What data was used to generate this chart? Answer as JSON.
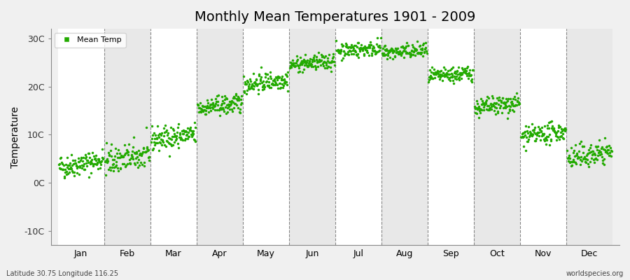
{
  "title": "Monthly Mean Temperatures 1901 - 2009",
  "ylabel": "Temperature",
  "yticks": [
    -10,
    0,
    10,
    20,
    30
  ],
  "ytick_labels": [
    "-10C",
    "0C",
    "10C",
    "20C",
    "30C"
  ],
  "ylim": [
    -13,
    32
  ],
  "marker_color": "#22AA00",
  "marker": "o",
  "marker_size": 2.5,
  "legend_label": "Mean Temp",
  "bg_color": "#F0F0F0",
  "band_color_light": "#FFFFFF",
  "band_color_dark": "#E8E8E8",
  "footnote_left": "Latitude 30.75 Longitude 116.25",
  "footnote_right": "worldspecies.org",
  "month_names": [
    "Jan",
    "Feb",
    "Mar",
    "Apr",
    "May",
    "Jun",
    "Jul",
    "Aug",
    "Sep",
    "Oct",
    "Nov",
    "Dec"
  ],
  "monthly_mean_temps": [
    3.2,
    4.5,
    9.0,
    15.5,
    20.5,
    24.5,
    27.5,
    27.0,
    22.0,
    15.5,
    9.5,
    5.0
  ],
  "monthly_trend": [
    0.015,
    0.012,
    0.01,
    0.01,
    0.01,
    0.008,
    0.005,
    0.005,
    0.008,
    0.01,
    0.012,
    0.015
  ],
  "monthly_noise": [
    1.2,
    1.5,
    1.2,
    1.0,
    1.0,
    0.8,
    0.8,
    0.8,
    0.8,
    1.0,
    1.0,
    1.2
  ],
  "n_years": 109,
  "start_year": 1901,
  "seed": 42,
  "xlim_start": -0.15,
  "xlim_end": 12.15
}
